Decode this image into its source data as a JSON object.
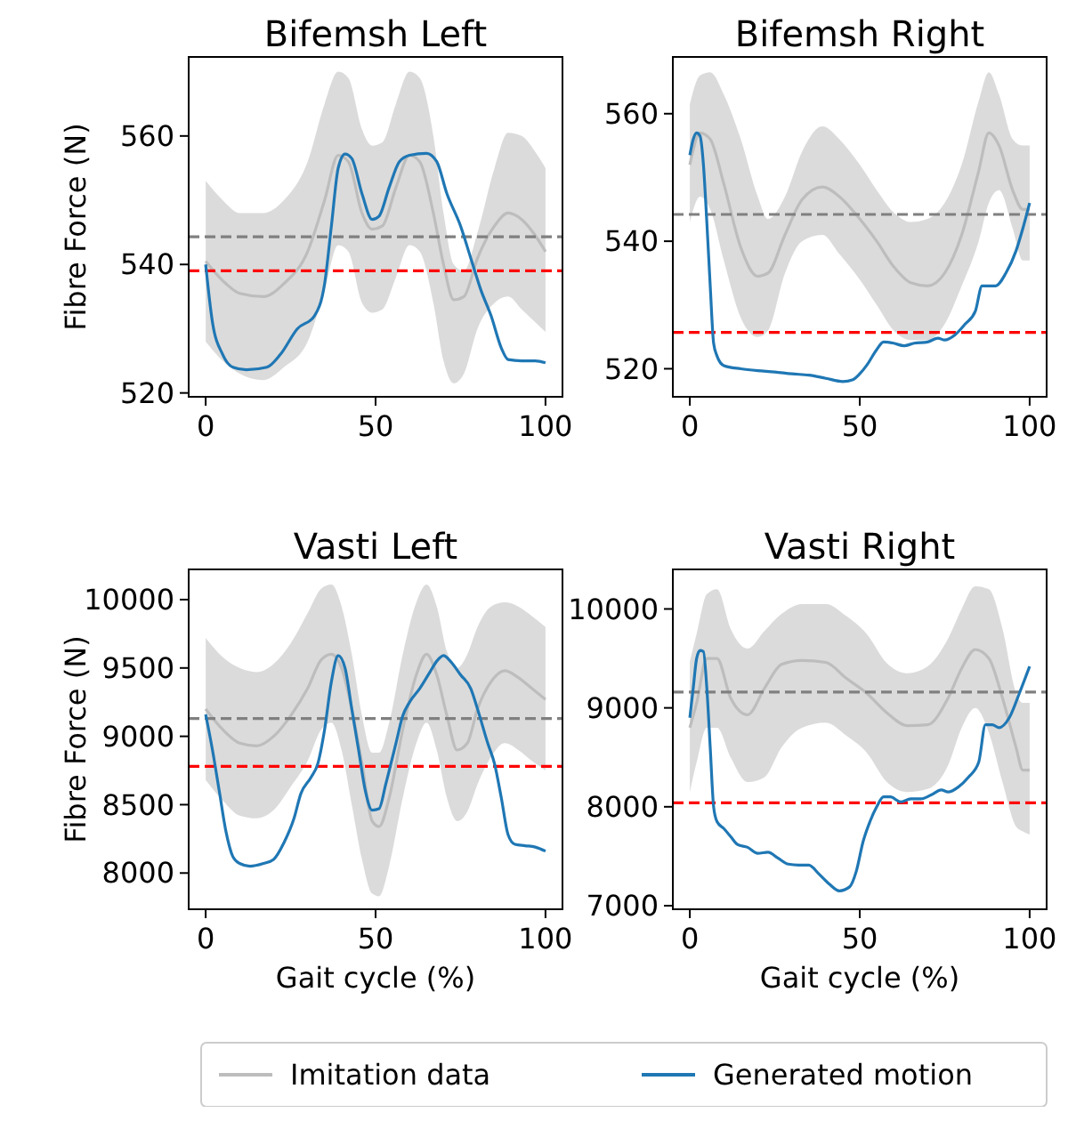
{
  "chart_data": [
    {
      "type": "line",
      "title": "Bifemsh Left",
      "ylabel": "Fibre Force (N)",
      "xlim": [
        -5,
        105
      ],
      "xticks": [
        0,
        50,
        100
      ],
      "ylim": [
        519.4,
        572.3
      ],
      "yticks": [
        520,
        540,
        560
      ],
      "series": [
        {
          "color": "#bdbdbd",
          "x": [
            0,
            5,
            10,
            17,
            23,
            30,
            35,
            39,
            42,
            46,
            49,
            52,
            56,
            60,
            63,
            67,
            70,
            73,
            76,
            80,
            85,
            89,
            93,
            97,
            100
          ],
          "values": [
            540.5,
            537.5,
            535.5,
            535,
            537,
            542,
            550,
            557,
            556,
            548,
            545.5,
            546,
            552,
            557,
            556,
            548,
            540,
            534.5,
            535,
            541,
            546,
            548,
            547,
            544.5,
            542
          ],
          "upper": [
            553,
            550,
            548,
            548,
            550,
            556,
            565,
            570,
            569,
            561,
            558.5,
            559,
            565,
            570,
            569,
            560,
            548,
            540,
            539,
            545,
            555,
            560.5,
            560,
            557.5,
            555
          ],
          "lower": [
            528,
            525,
            523,
            522,
            524,
            528,
            536,
            543,
            542,
            534,
            532.5,
            533,
            538,
            543,
            542,
            534,
            525,
            521.5,
            523,
            530,
            534,
            535,
            533,
            531,
            529.5
          ]
        },
        {
          "color": "#1f77b4",
          "x": [
            0,
            2,
            5,
            8,
            12,
            18,
            22,
            27,
            32,
            35,
            37,
            39,
            41,
            43,
            46,
            49,
            51,
            54,
            57,
            60,
            65,
            68,
            71,
            75,
            78,
            81,
            84,
            87,
            89,
            93,
            97,
            100
          ],
          "values": [
            540,
            531,
            526,
            524,
            523.6,
            524,
            526,
            530,
            532,
            537,
            546,
            555,
            557.2,
            556.5,
            551,
            547,
            547.5,
            552,
            556,
            557,
            557.3,
            556,
            551,
            546,
            541,
            536,
            532,
            527,
            525.2,
            525,
            525,
            524.7
          ]
        }
      ],
      "ref_lines": [
        {
          "axis": "y",
          "value": 544.3,
          "color": "#808080",
          "line_style": "dashed"
        },
        {
          "axis": "y",
          "value": 539,
          "color": "#ff0000",
          "line_style": "dashed"
        }
      ]
    },
    {
      "type": "line",
      "title": "Bifemsh Right",
      "xlim": [
        -5,
        105
      ],
      "xticks": [
        0,
        50,
        100
      ],
      "ylim": [
        515.6,
        568.9
      ],
      "yticks": [
        520,
        540,
        560
      ],
      "series": [
        {
          "color": "#bdbdbd",
          "x": [
            0,
            3,
            6,
            10,
            15,
            20,
            23,
            28,
            33,
            39,
            44,
            50,
            55,
            60,
            65,
            70,
            75,
            80,
            85,
            88,
            91,
            95,
            98,
            100
          ],
          "values": [
            552,
            557,
            556,
            549,
            539,
            534.5,
            535,
            541,
            546.5,
            548.5,
            547,
            543.5,
            540,
            536,
            533.5,
            533,
            535,
            541,
            551,
            557,
            555,
            548,
            545,
            545
          ],
          "upper": [
            561.5,
            566,
            566.5,
            563,
            556,
            547,
            543.5,
            547,
            554,
            558,
            556,
            552,
            548,
            544.5,
            543,
            543.5,
            546,
            552,
            562,
            566.5,
            563,
            556,
            555,
            555
          ],
          "lower": [
            543,
            547,
            545,
            537,
            528,
            525,
            526,
            535,
            540,
            541,
            538,
            534,
            530,
            526,
            524.5,
            524.5,
            527,
            533,
            540,
            546,
            548,
            542,
            537,
            537
          ]
        },
        {
          "color": "#1f77b4",
          "x": [
            0,
            1,
            2,
            3,
            4,
            5,
            6,
            7,
            8,
            10,
            15,
            20,
            25,
            30,
            35,
            40,
            45,
            48,
            50,
            52,
            55,
            57,
            60,
            63,
            66,
            70,
            73,
            75,
            78,
            81,
            84,
            86,
            88,
            90,
            93,
            96,
            98,
            100
          ],
          "values": [
            553.5,
            556,
            557,
            556.5,
            552,
            543,
            533,
            524,
            522,
            520.5,
            520,
            519.7,
            519.5,
            519.2,
            519,
            518.5,
            518,
            518.3,
            519.2,
            520.5,
            523,
            524.2,
            524,
            523.6,
            524,
            524.2,
            524.8,
            524.5,
            525.3,
            527,
            529,
            533,
            533,
            533,
            535,
            538.5,
            542,
            546
          ]
        }
      ],
      "ref_lines": [
        {
          "axis": "y",
          "value": 544.2,
          "color": "#808080",
          "line_style": "dashed"
        },
        {
          "axis": "y",
          "value": 525.7,
          "color": "#ff0000",
          "line_style": "dashed"
        }
      ]
    },
    {
      "type": "line",
      "title": "Vasti Left",
      "xlabel": "Gait cycle (%)",
      "ylabel": "Fibre Force (N)",
      "xlim": [
        -5,
        105
      ],
      "xticks": [
        0,
        50,
        100
      ],
      "ylim": [
        7735,
        10221
      ],
      "yticks": [
        8000,
        8500,
        9000,
        9500,
        10000
      ],
      "series": [
        {
          "color": "#bdbdbd",
          "x": [
            0,
            5,
            10,
            15,
            20,
            25,
            30,
            34,
            37,
            40,
            43,
            46,
            49,
            51,
            54,
            58,
            62,
            65,
            68,
            71,
            74,
            77,
            80,
            84,
            88,
            92,
            96,
            100
          ],
          "values": [
            9200,
            9050,
            8950,
            8930,
            9000,
            9150,
            9350,
            9560,
            9600,
            9500,
            9200,
            8800,
            8380,
            8340,
            8550,
            9050,
            9450,
            9600,
            9450,
            9150,
            8900,
            8950,
            9200,
            9400,
            9480,
            9430,
            9350,
            9270
          ],
          "upper": [
            9720,
            9580,
            9500,
            9470,
            9530,
            9680,
            9900,
            10080,
            10110,
            9950,
            9600,
            9150,
            8880,
            8880,
            9100,
            9600,
            9980,
            10110,
            9950,
            9620,
            9500,
            9600,
            9800,
            9950,
            9980,
            9950,
            9880,
            9800
          ],
          "lower": [
            8680,
            8530,
            8420,
            8400,
            8460,
            8630,
            8820,
            9050,
            9100,
            8900,
            8500,
            8100,
            7850,
            7830,
            8050,
            8550,
            8950,
            9100,
            8900,
            8550,
            8380,
            8450,
            8650,
            8850,
            8950,
            8900,
            8820,
            8750
          ]
        },
        {
          "color": "#1f77b4",
          "x": [
            0,
            2,
            4,
            6,
            8,
            10,
            13,
            17,
            20,
            23,
            26,
            28,
            31,
            33,
            35,
            37,
            39,
            41,
            43,
            45,
            47,
            49,
            51,
            53,
            56,
            58,
            60,
            63,
            66,
            68,
            70,
            72,
            75,
            78,
            80,
            83,
            85,
            87,
            89,
            91,
            94,
            97,
            100
          ],
          "values": [
            9160,
            8900,
            8600,
            8300,
            8120,
            8070,
            8050,
            8070,
            8100,
            8220,
            8400,
            8580,
            8700,
            8800,
            9050,
            9400,
            9590,
            9500,
            9200,
            8900,
            8600,
            8460,
            8470,
            8650,
            8950,
            9150,
            9250,
            9350,
            9470,
            9550,
            9590,
            9550,
            9450,
            9350,
            9200,
            8950,
            8800,
            8550,
            8280,
            8210,
            8200,
            8190,
            8160
          ]
        }
      ],
      "ref_lines": [
        {
          "axis": "y",
          "value": 9130,
          "color": "#808080",
          "line_style": "dashed"
        },
        {
          "axis": "y",
          "value": 8780,
          "color": "#ff0000",
          "line_style": "dashed"
        }
      ]
    },
    {
      "type": "line",
      "title": "Vasti Right",
      "xlabel": "Gait cycle (%)",
      "xlim": [
        -5,
        105
      ],
      "xticks": [
        0,
        50,
        100
      ],
      "ylim": [
        6964,
        10400
      ],
      "yticks": [
        7000,
        8000,
        9000,
        10000
      ],
      "legend": "bottom",
      "series": [
        {
          "name": "Imitation data",
          "color": "#bdbdbd",
          "x": [
            0,
            2,
            5,
            8,
            12,
            17,
            22,
            27,
            33,
            40,
            46,
            52,
            58,
            64,
            70,
            76,
            80,
            84,
            88,
            92,
            96,
            98,
            100
          ],
          "values": [
            8800,
            9050,
            9500,
            9500,
            9100,
            8930,
            9200,
            9440,
            9480,
            9460,
            9300,
            9150,
            8950,
            8820,
            8830,
            9100,
            9400,
            9590,
            9500,
            9100,
            8600,
            8370,
            8370
          ],
          "upper": [
            9470,
            9750,
            10150,
            10200,
            9800,
            9600,
            9780,
            9950,
            10050,
            10050,
            9930,
            9750,
            9450,
            9350,
            9420,
            9700,
            10000,
            10230,
            10200,
            9800,
            9150,
            9050,
            9050
          ],
          "lower": [
            8150,
            8450,
            8800,
            8800,
            8500,
            8250,
            8300,
            8600,
            8800,
            8850,
            8720,
            8550,
            8250,
            8150,
            8180,
            8420,
            8800,
            9000,
            8750,
            8250,
            7800,
            7750,
            7720
          ]
        },
        {
          "name": "Generated motion",
          "color": "#1f77b4",
          "x": [
            0,
            1,
            2,
            3,
            4,
            5,
            6,
            7,
            8,
            10,
            12,
            14,
            17,
            20,
            23,
            26,
            29,
            32,
            35,
            38,
            41,
            44,
            47,
            49,
            51,
            53,
            55,
            57,
            59,
            62,
            65,
            68,
            71,
            74,
            76,
            79,
            82,
            85,
            87,
            89,
            91,
            94,
            97,
            100
          ],
          "values": [
            8900,
            9200,
            9500,
            9580,
            9570,
            9200,
            8600,
            8000,
            7850,
            7780,
            7700,
            7620,
            7590,
            7530,
            7540,
            7480,
            7420,
            7410,
            7410,
            7320,
            7220,
            7150,
            7190,
            7350,
            7650,
            7850,
            8000,
            8100,
            8100,
            8050,
            8080,
            8080,
            8120,
            8170,
            8150,
            8200,
            8300,
            8450,
            8830,
            8830,
            8800,
            8900,
            9150,
            9420
          ]
        }
      ],
      "ref_lines": [
        {
          "axis": "y",
          "value": 9160,
          "color": "#808080",
          "line_style": "dashed"
        },
        {
          "axis": "y",
          "value": 8040,
          "color": "#ff0000",
          "line_style": "dashed"
        }
      ]
    }
  ]
}
